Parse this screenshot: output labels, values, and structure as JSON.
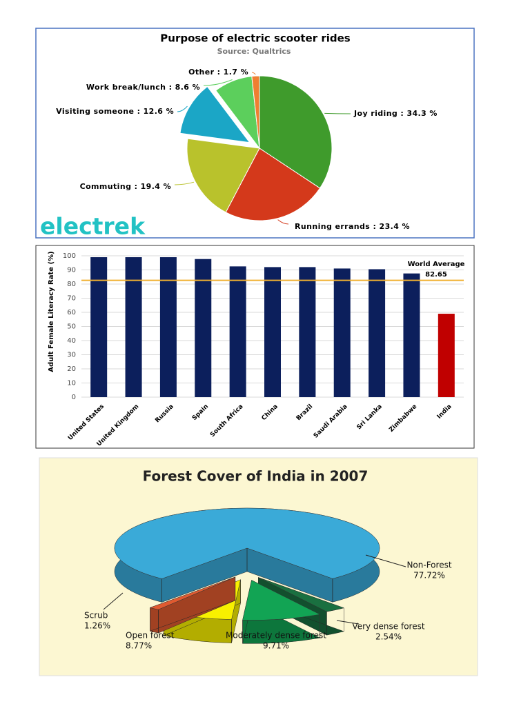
{
  "chart_data": [
    {
      "type": "pie",
      "title": "Purpose of electric scooter rides",
      "subtitle": "Source: Qualtrics",
      "logo": "electrek",
      "categories": [
        "Joy riding : 34.3 %",
        "Running errands : 23.4 %",
        "Commuting : 19.4 %",
        "Visiting someone : 12.6 %",
        "Work break/lunch : 8.6 %",
        "Other : 1.7 %"
      ],
      "values": [
        34.3,
        23.4,
        19.4,
        12.6,
        8.6,
        1.7
      ],
      "colors": [
        "#3f9b2c",
        "#d4391b",
        "#b9c22c",
        "#1ba6c6",
        "#5ccf5c",
        "#ef7f31"
      ],
      "explode": [
        false,
        false,
        false,
        true,
        false,
        false
      ]
    },
    {
      "type": "bar",
      "ylabel": "Adult Female Literacy Rate (%)",
      "categories": [
        "United States",
        "United Kingdom",
        "Russia",
        "Spain",
        "South Africa",
        "China",
        "Brazil",
        "Saudi Arabia",
        "Sri Lanka",
        "Zimbabwe",
        "India"
      ],
      "values": [
        99,
        99,
        99,
        97.7,
        92.5,
        92,
        92,
        91,
        90.5,
        87.5,
        59
      ],
      "colors": [
        "#0c1f5c",
        "#0c1f5c",
        "#0c1f5c",
        "#0c1f5c",
        "#0c1f5c",
        "#0c1f5c",
        "#0c1f5c",
        "#0c1f5c",
        "#0c1f5c",
        "#0c1f5c",
        "#c00000"
      ],
      "ylim": [
        0,
        100
      ],
      "yticks": [
        0,
        10,
        20,
        30,
        40,
        50,
        60,
        70,
        80,
        90,
        100
      ],
      "grid": true,
      "reference_line": {
        "label": "World Average",
        "value": 82.65,
        "color": "#f0b030"
      }
    },
    {
      "type": "pie",
      "three_d": true,
      "title": "Forest Cover of India in 2007",
      "categories": [
        "Non-Forest",
        "Very dense forest",
        "Moderately dense forest",
        "Open forest",
        "Scrub"
      ],
      "values": [
        77.72,
        2.54,
        9.71,
        8.77,
        1.26
      ],
      "value_labels": [
        "77.72%",
        "2.54%",
        "9.71%",
        "8.77%",
        "1.26%"
      ],
      "colors": [
        "#3aaad8",
        "#1a7040",
        "#12a454",
        "#f8f000",
        "#e05a30"
      ],
      "explode": [
        false,
        true,
        true,
        true,
        true
      ]
    }
  ]
}
